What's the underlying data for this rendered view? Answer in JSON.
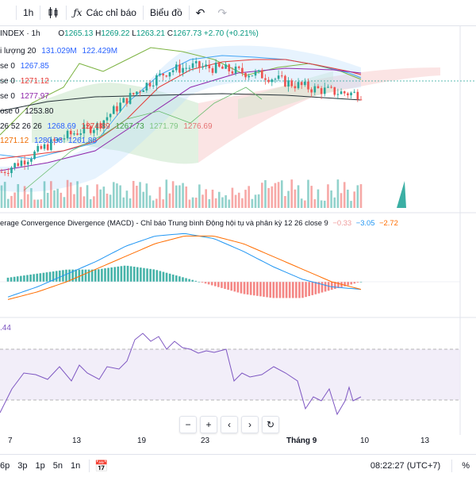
{
  "toolbar": {
    "timeframe": "1h",
    "indicators_label": "Các chỉ báo",
    "layout_label": "Biểu đồ"
  },
  "symbol": {
    "name": "INDEX · 1h",
    "open_label": "O",
    "open": "1265.13",
    "high_label": "H",
    "high": "1269.22",
    "low_label": "L",
    "low": "1263.21",
    "close_label": "C",
    "close": "1267.73",
    "change": "+2.70 (+0.21%)"
  },
  "legend": {
    "volume_label": "i lượng 20",
    "volume_val1": "131.029M",
    "volume_val2": "122.429M",
    "ma1_label": "se 0",
    "ma1_val": "1267.85",
    "ma2_label": "se 0",
    "ma2_val": "1271.12",
    "ma3_label": "se 0",
    "ma3_val": "1277.97",
    "ma4_label": "ose 0",
    "ma4_val": "1253.80",
    "ichimoku_label": "26 52 26 26",
    "ichimoku_vals": [
      "1268.69",
      "1274.89",
      "1267.73",
      "1271.79",
      "1276.69"
    ],
    "ichimoku_vals2": [
      "1271.12",
      "1280.38",
      "1261.88"
    ]
  },
  "macd": {
    "title": "erage Convergence Divergence (MACD) - Chỉ báo Trung bình Động hội tụ và phân kỳ 12 26 close 9",
    "hist": "−0.33",
    "macd": "−3.05",
    "signal": "−2.72"
  },
  "rsi": {
    "value": ".44"
  },
  "xaxis": {
    "ticks": [
      "7",
      "13",
      "19",
      "23",
      "Tháng 9",
      "10",
      "13"
    ]
  },
  "nav": {
    "zoom_out": "−",
    "zoom_in": "+",
    "left": "‹",
    "right": "›",
    "reset": "↻"
  },
  "bottom": {
    "ranges": [
      "6p",
      "3p",
      "1p",
      "5n",
      "1n"
    ],
    "time": "08:22:27 (UTC+7)",
    "percent": "%"
  },
  "colors": {
    "up": "#26a69a",
    "down": "#ef5350",
    "macd_line": "#2196f3",
    "signal_line": "#ff6d00",
    "rsi_line": "#7e57c2",
    "cloud_green": "#a5d6a7",
    "cloud_red": "#ef9a9a"
  },
  "chart_data": [
    {
      "type": "candlestick",
      "title": "INDEX · 1h",
      "x": [
        "7",
        "13",
        "19",
        "23",
        "Tháng 9",
        "10",
        "13"
      ],
      "price_trend": [
        1225,
        1232,
        1240,
        1246,
        1250,
        1262,
        1272,
        1280,
        1282,
        1281,
        1279,
        1277,
        1273,
        1270,
        1268,
        1267
      ],
      "last": {
        "open": 1265.13,
        "high": 1269.22,
        "low": 1263.21,
        "close": 1267.73
      }
    },
    {
      "type": "line",
      "title": "MACD 12 26 close 9",
      "series": [
        {
          "name": "MACD",
          "values": [
            -6,
            -2,
            3,
            8,
            14,
            18,
            19,
            17,
            12,
            6,
            1,
            -2,
            -3
          ]
        },
        {
          "name": "Signal",
          "values": [
            -7,
            -4,
            0,
            5,
            10,
            15,
            18,
            18,
            15,
            10,
            5,
            0,
            -3
          ]
        }
      ],
      "hist_last": -0.33,
      "macd_last": -3.05,
      "signal_last": -2.72
    },
    {
      "type": "line",
      "title": "RSI",
      "series": [
        {
          "name": "RSI",
          "values": [
            45,
            52,
            58,
            62,
            60,
            74,
            72,
            65,
            58,
            55,
            42,
            40,
            44
          ]
        }
      ],
      "ylim": [
        0,
        100
      ]
    }
  ]
}
